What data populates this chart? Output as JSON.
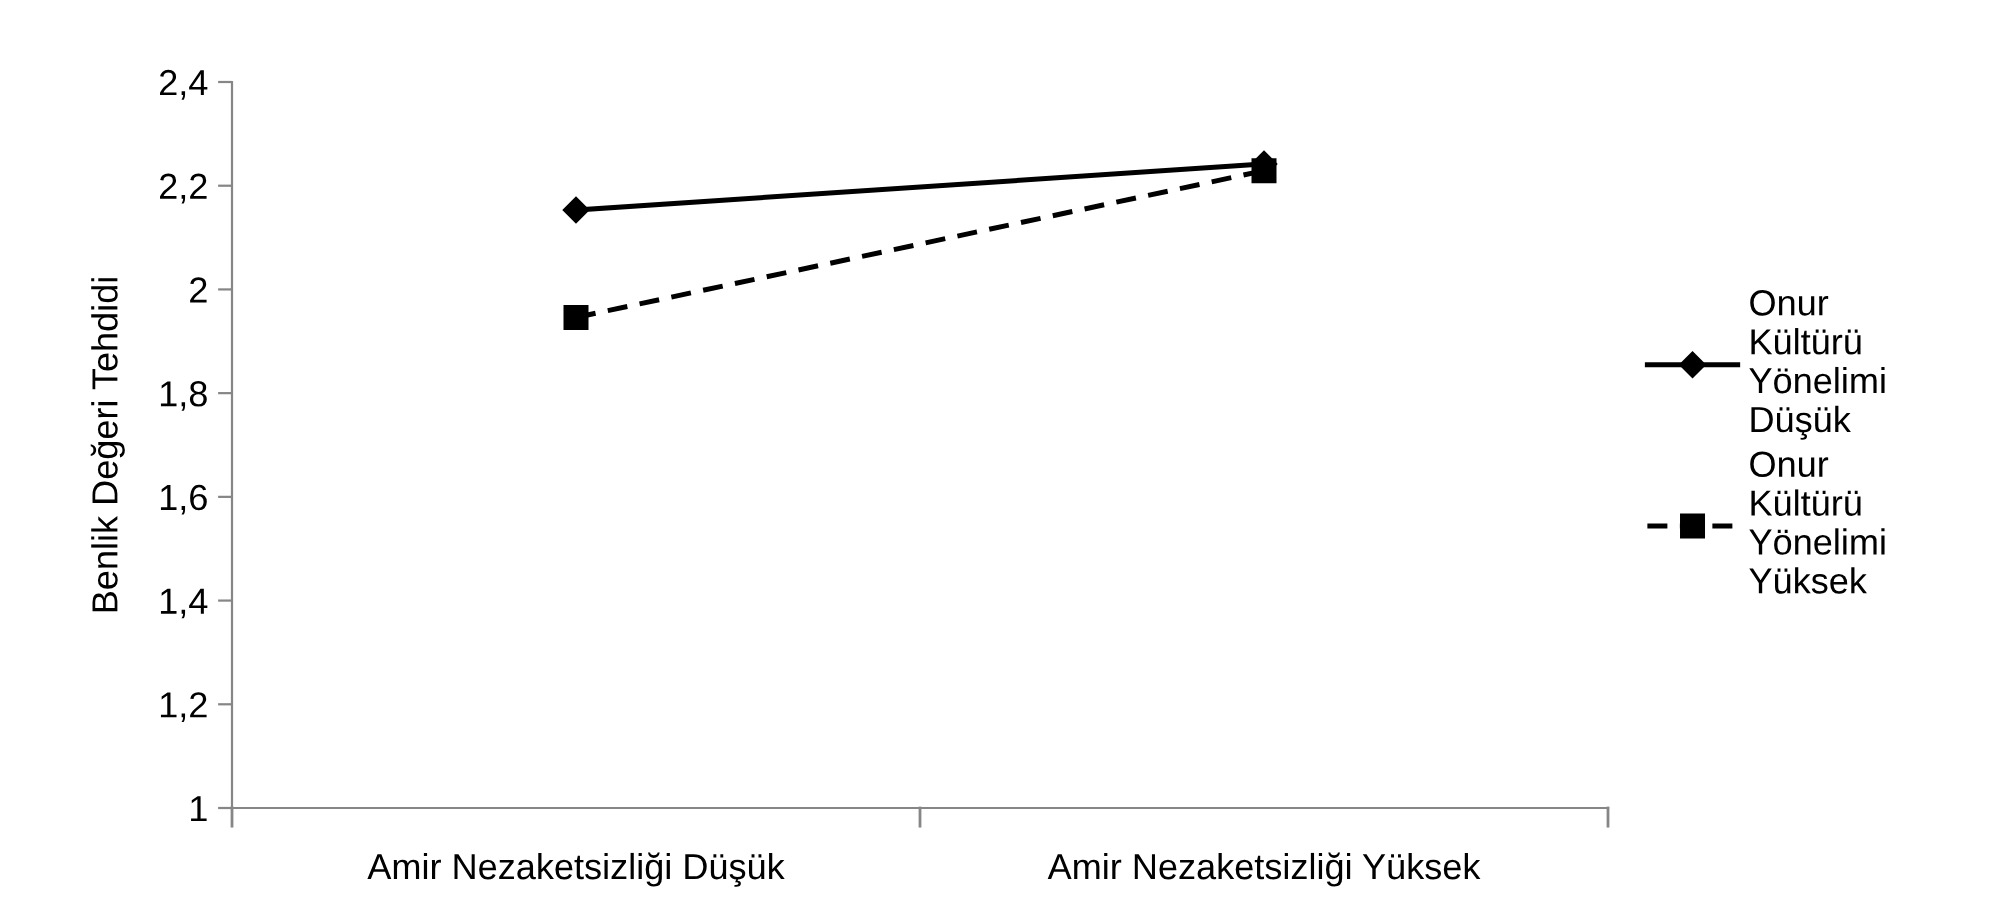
{
  "chart_data": {
    "type": "line",
    "ylabel": "Benlik Değeri Tehdidi",
    "categories": [
      "Amir Nezaketsizliği Düşük",
      "Amir Nezaketsizliği Yüksek"
    ],
    "series": [
      {
        "name": "Onur\nKültürü\nYönelimi\nDüşük",
        "color": "#000000",
        "values": [
          2.153,
          2.242
        ],
        "marker": "diamond",
        "line_style": "solid"
      },
      {
        "name": "Onur\nKültürü\nYönelimi\nYüksek",
        "color": "#000000",
        "values": [
          1.946,
          2.229
        ],
        "marker": "square",
        "line_style": "dashed"
      }
    ],
    "ylim": [
      1,
      2.4
    ],
    "yticks": [
      {
        "value": 1,
        "label": "1"
      },
      {
        "value": 1.2,
        "label": "1,2"
      },
      {
        "value": 1.4,
        "label": "1,4"
      },
      {
        "value": 1.6,
        "label": "1,6"
      },
      {
        "value": 1.8,
        "label": "1,8"
      },
      {
        "value": 2,
        "label": "2"
      },
      {
        "value": 2.2,
        "label": "2,2"
      },
      {
        "value": 2.4,
        "label": "2,4"
      }
    ],
    "grid": false,
    "legend": "right"
  }
}
